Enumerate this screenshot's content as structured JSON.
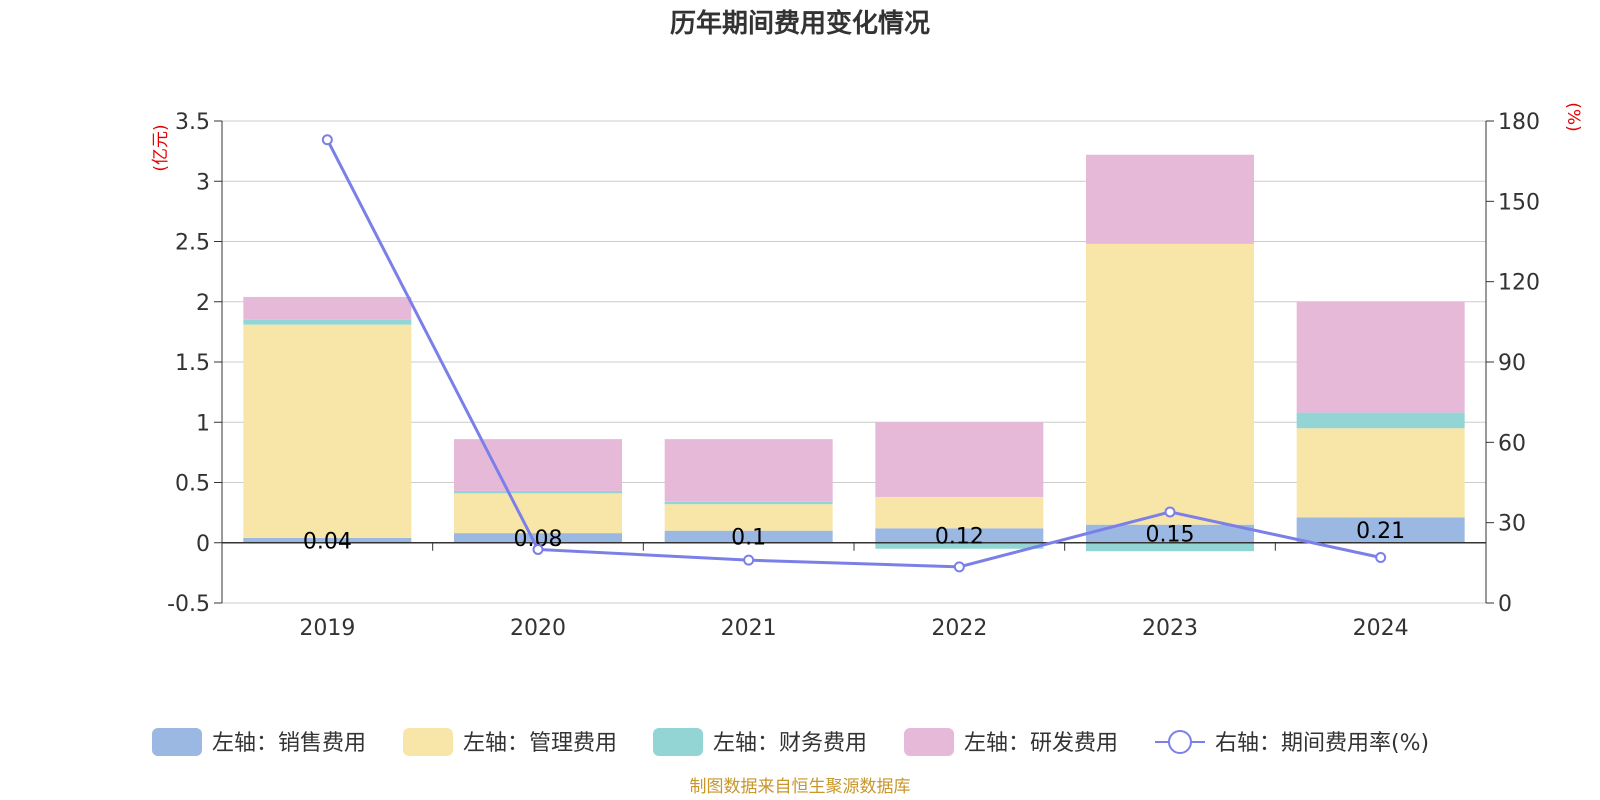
{
  "chart_data": {
    "type": "bar",
    "title": "历年期间费用变化情况",
    "categories": [
      "2019",
      "2020",
      "2021",
      "2022",
      "2023",
      "2024"
    ],
    "series": [
      {
        "name": "左轴：销售费用",
        "axis": "left",
        "type": "bar",
        "color": "#9bb8e3",
        "values": [
          0.04,
          0.08,
          0.1,
          0.12,
          0.15,
          0.21
        ]
      },
      {
        "name": "左轴：管理费用",
        "axis": "left",
        "type": "bar",
        "color": "#f8e6a8",
        "values": [
          1.77,
          0.33,
          0.22,
          0.26,
          2.33,
          0.74
        ]
      },
      {
        "name": "左轴：财务费用",
        "axis": "left",
        "type": "bar",
        "color": "#93d5d4",
        "values": [
          0.04,
          0.02,
          0.02,
          -0.05,
          -0.07,
          0.13
        ]
      },
      {
        "name": "左轴：研发费用",
        "axis": "left",
        "type": "bar",
        "color": "#e7b9d9",
        "values": [
          0.19,
          0.43,
          0.52,
          0.62,
          0.74,
          0.92
        ]
      },
      {
        "name": "右轴：期间费用率(%)",
        "axis": "right",
        "type": "line",
        "color": "#7b7fe8",
        "values": [
          173,
          20,
          16,
          13.5,
          34,
          17
        ]
      }
    ],
    "data_labels": [
      "0.04",
      "0.08",
      "0.1",
      "0.12",
      "0.15",
      "0.21"
    ],
    "left_axis": {
      "unit": "(亿元)",
      "min": -0.5,
      "max": 3.5,
      "ticks": [
        -0.5,
        0,
        0.5,
        1,
        1.5,
        2,
        2.5,
        3,
        3.5
      ],
      "tick_labels": [
        "-0.5",
        "0",
        "0.5",
        "1",
        "1.5",
        "2",
        "2.5",
        "3",
        "3.5"
      ]
    },
    "right_axis": {
      "unit": "(%)",
      "min": 0,
      "max": 180,
      "ticks": [
        0,
        30,
        60,
        90,
        120,
        150,
        180
      ],
      "tick_labels": [
        "0",
        "30",
        "60",
        "90",
        "120",
        "150",
        "180"
      ]
    },
    "grid": true,
    "legend_position": "bottom"
  },
  "source_note": "制图数据来自恒生聚源数据库"
}
